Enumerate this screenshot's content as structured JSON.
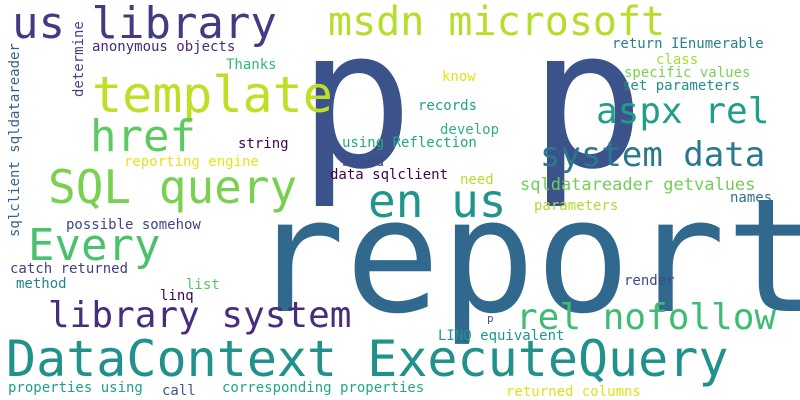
{
  "words": [
    {
      "id": "report",
      "text": "report",
      "color": "#31688e"
    },
    {
      "id": "p-large",
      "text": "p p",
      "color": "#3b528b"
    },
    {
      "id": "datacontext-executequery",
      "text": "DataContext ExecuteQuery",
      "color": "#21918c"
    },
    {
      "id": "us-library",
      "text": "us library",
      "color": "#443a83"
    },
    {
      "id": "msdn-microsoft",
      "text": "msdn microsoft",
      "color": "#b5de2b"
    },
    {
      "id": "template",
      "text": "template",
      "color": "#bddf26"
    },
    {
      "id": "sql-query",
      "text": "SQL query",
      "color": "#7ad151"
    },
    {
      "id": "href",
      "text": "href",
      "color": "#5ec962"
    },
    {
      "id": "en-us",
      "text": "en us",
      "color": "#1f958b"
    },
    {
      "id": "every",
      "text": "Every",
      "color": "#4ac16d"
    },
    {
      "id": "system-data",
      "text": "system data",
      "color": "#2a788e"
    },
    {
      "id": "aspx-rel",
      "text": "aspx rel",
      "color": "#1f9e89"
    },
    {
      "id": "library-system",
      "text": "library system",
      "color": "#472d7b"
    },
    {
      "id": "rel-nofollow",
      "text": "rel nofollow",
      "color": "#3fbc73"
    },
    {
      "id": "sqldatareader-getvalues",
      "text": "sqldatareader getvalues",
      "color": "#70cf57"
    },
    {
      "id": "anonymous-objects",
      "text": "anonymous objects",
      "color": "#482878"
    },
    {
      "id": "thanks",
      "text": "Thanks",
      "color": "#35b779"
    },
    {
      "id": "string",
      "text": "string",
      "color": "#440154"
    },
    {
      "id": "reporting-engine",
      "text": "reporting engine",
      "color": "#e5e419"
    },
    {
      "id": "using-reflection",
      "text": "using Reflection",
      "color": "#22a884"
    },
    {
      "id": "based",
      "text": "based",
      "color": "#3e4a89"
    },
    {
      "id": "data-sqlclient",
      "text": "data sqlclient",
      "color": "#440154"
    },
    {
      "id": "need",
      "text": "need",
      "color": "#b5de2b"
    },
    {
      "id": "develop",
      "text": "develop",
      "color": "#2db27d"
    },
    {
      "id": "records",
      "text": "records",
      "color": "#1fa188"
    },
    {
      "id": "know",
      "text": "know",
      "color": "#dde318"
    },
    {
      "id": "return-ienumerable",
      "text": "return IEnumerable",
      "color": "#26828e"
    },
    {
      "id": "class",
      "text": "class",
      "color": "#a8db34"
    },
    {
      "id": "specific-values",
      "text": "specific values",
      "color": "#7ad151"
    },
    {
      "id": "set-parameters",
      "text": "set parameters",
      "color": "#21918c"
    },
    {
      "id": "parameters",
      "text": "parameters",
      "color": "#addc30"
    },
    {
      "id": "names",
      "text": "names",
      "color": "#2c728e"
    },
    {
      "id": "possible-somehow",
      "text": "possible somehow",
      "color": "#414487"
    },
    {
      "id": "catch-returned",
      "text": "catch returned",
      "color": "#433e85"
    },
    {
      "id": "method",
      "text": "method",
      "color": "#25858e"
    },
    {
      "id": "list",
      "text": "list",
      "color": "#54c568"
    },
    {
      "id": "linq",
      "text": "linq",
      "color": "#440154"
    },
    {
      "id": "render",
      "text": "render",
      "color": "#3e4989"
    },
    {
      "id": "p-small",
      "text": "p",
      "color": "#3b528b"
    },
    {
      "id": "linq-equivalent",
      "text": "LINQ equivalent",
      "color": "#1f968b"
    },
    {
      "id": "properties-using",
      "text": "properties using",
      "color": "#1fa088"
    },
    {
      "id": "call",
      "text": "call",
      "color": "#38598c"
    },
    {
      "id": "corresponding-properties",
      "text": "corresponding properties",
      "color": "#22a785"
    },
    {
      "id": "returned-columns",
      "text": "returned columns",
      "color": "#dde318"
    },
    {
      "id": "determine",
      "text": "determine",
      "color": "#414487"
    },
    {
      "id": "sqlclient-sqldatareader",
      "text": "sqlclient sqldatareader",
      "color": "#33638d"
    }
  ]
}
